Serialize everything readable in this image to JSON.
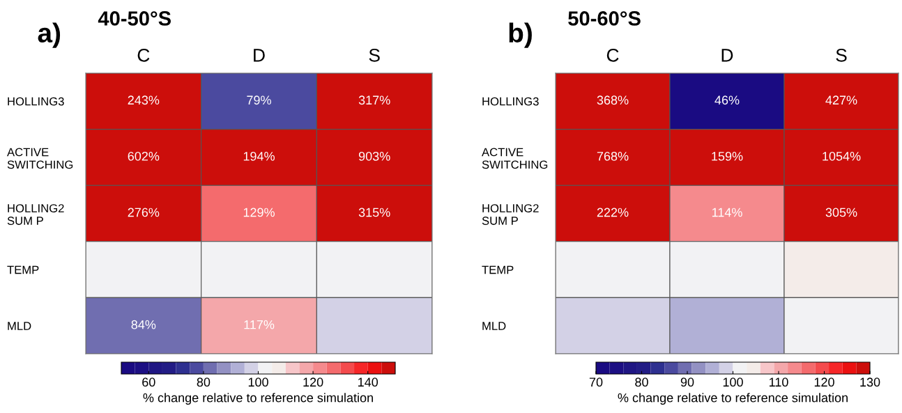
{
  "chart_data": [
    {
      "type": "heatmap",
      "title": "40-50°S",
      "clabel": "% change relative to reference simulation",
      "annotations": [
        "a)"
      ],
      "categories": [
        "C",
        "D",
        "S"
      ],
      "y_categories": [
        "HOLLING3",
        "ACTIVE\nSWITCHING",
        "HOLLING2\nSUM P",
        "TEMP",
        "MLD"
      ],
      "cells": [
        [
          243,
          79,
          317
        ],
        [
          602,
          194,
          903
        ],
        [
          276,
          129,
          315
        ],
        [
          102,
          102,
          102
        ],
        [
          84,
          117,
          97
        ]
      ],
      "cell_labels": [
        [
          "243%",
          "79%",
          "317%"
        ],
        [
          "602%",
          "194%",
          "903%"
        ],
        [
          "276%",
          "129%",
          "315%"
        ],
        [
          null,
          null,
          null
        ],
        [
          "84%",
          "117%",
          null
        ]
      ],
      "clim": [
        50,
        150
      ],
      "cticks": [
        60,
        80,
        100,
        120,
        140
      ],
      "colors": [
        "#1a0b82",
        "#1c0f83",
        "#1f1683",
        "#221c85",
        "#2e3090",
        "#4b4a9f",
        "#706eb0",
        "#9391c3",
        "#b1b0d6",
        "#d3d1e6",
        "#f2f2f4",
        "#f4ece9",
        "#f7c6c9",
        "#f4a7aa",
        "#f58a8d",
        "#f46b6d",
        "#f44b4d",
        "#f62628",
        "#eb1010",
        "#cc0e0b"
      ]
    },
    {
      "type": "heatmap",
      "title": "50-60°S",
      "clabel": "% change relative to reference simulation",
      "annotations": [
        "b)"
      ],
      "categories": [
        "C",
        "D",
        "S"
      ],
      "y_categories": [
        "HOLLING3",
        "ACTIVE\nSWITCHING",
        "HOLLING2\nSUM P",
        "TEMP",
        "MLD"
      ],
      "cells": [
        [
          368,
          46,
          427
        ],
        [
          768,
          159,
          1054
        ],
        [
          222,
          114,
          305
        ],
        [
          101,
          101,
          104
        ],
        [
          98,
          95,
          101
        ]
      ],
      "cell_labels": [
        [
          "368%",
          "46%",
          "427%"
        ],
        [
          "768%",
          "159%",
          "1054%"
        ],
        [
          "222%",
          "114%",
          "305%"
        ],
        [
          null,
          null,
          null
        ],
        [
          null,
          null,
          null
        ]
      ],
      "clim": [
        70,
        130
      ],
      "cticks": [
        70,
        80,
        90,
        100,
        110,
        120,
        130
      ],
      "colors": [
        "#1a0b82",
        "#1c0f83",
        "#1f1683",
        "#221c85",
        "#2e3090",
        "#4b4a9f",
        "#706eb0",
        "#9391c3",
        "#b1b0d6",
        "#d3d1e6",
        "#f2f2f4",
        "#f4ece9",
        "#f7c6c9",
        "#f4a7aa",
        "#f58a8d",
        "#f46b6d",
        "#f44b4d",
        "#f62628",
        "#eb1010",
        "#cc0e0b"
      ]
    }
  ]
}
